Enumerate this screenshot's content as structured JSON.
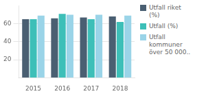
{
  "chart_data": {
    "type": "bar",
    "categories": [
      "2015",
      "2016",
      "2017",
      "2018"
    ],
    "series": [
      {
        "name": "Utfall riket\n(%)",
        "color": "#4a5f72",
        "values": [
          65,
          66,
          67,
          68
        ]
      },
      {
        "name": "Utfall (%)",
        "color": "#3dbfb8",
        "values": [
          65,
          71,
          65,
          62
        ]
      },
      {
        "name": "Utfall\nkommuner\növer 50 000..",
        "color": "#9ad4e8",
        "values": [
          69,
          70,
          70,
          69
        ]
      }
    ],
    "ylim": [
      0,
      80
    ],
    "yticks": [
      20,
      40,
      60
    ],
    "grid": true,
    "legend": "right"
  }
}
